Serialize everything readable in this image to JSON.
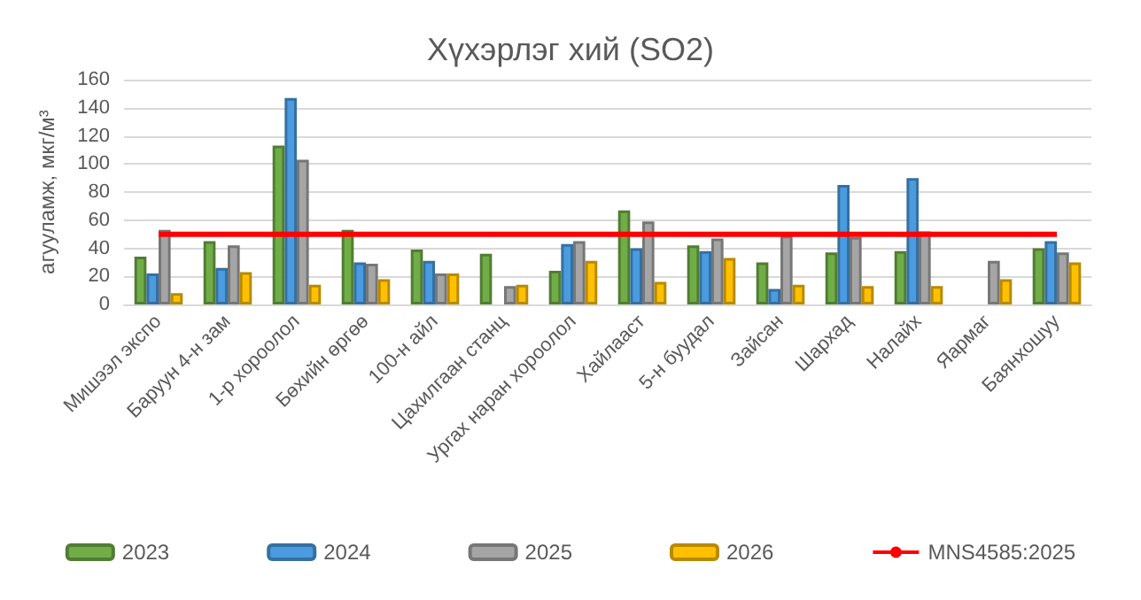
{
  "chart_data": {
    "type": "bar",
    "title": "Хүхэрлэг хий (SO2)",
    "ylabel": "агууламж, мкг/м³",
    "categories": [
      "Мишээл экспо",
      "Баруун 4-н зам",
      "1-р хороолол",
      "Бөхийн өргөө",
      "100-н айл",
      "Цахилгаан станц",
      "Ургах наран хороолол",
      "Хайлааст",
      "5-н буудал",
      "Зайсан",
      "Шархад",
      "Налайх",
      "Яармаг",
      "Баянхошуу"
    ],
    "series": [
      {
        "name": "2023",
        "color": "#70ad47",
        "values": [
          34,
          45,
          113,
          53,
          39,
          36,
          24,
          67,
          42,
          30,
          37,
          38,
          null,
          40
        ]
      },
      {
        "name": "2024",
        "color": "#4a9be0",
        "values": [
          22,
          26,
          147,
          30,
          31,
          null,
          43,
          40,
          38,
          11,
          85,
          90,
          null,
          45
        ]
      },
      {
        "name": "2025",
        "color": "#a5a5a5",
        "values": [
          53,
          42,
          103,
          29,
          22,
          13,
          45,
          59,
          47,
          49,
          48,
          52,
          31,
          37
        ]
      },
      {
        "name": "2026",
        "color": "#ffc000",
        "values": [
          8,
          23,
          14,
          18,
          22,
          14,
          31,
          16,
          33,
          14,
          13,
          13,
          18,
          30
        ]
      },
      {
        "name": "MNS4585:2025",
        "type": "line",
        "color": "#ff0000",
        "marker": "none",
        "values": [
          50,
          50,
          50,
          50,
          50,
          50,
          50,
          50,
          50,
          50,
          50,
          50,
          50,
          50
        ]
      }
    ],
    "ylim": [
      0,
      160
    ],
    "yticks": [
      0,
      20,
      40,
      60,
      80,
      100,
      120,
      140,
      160
    ],
    "grid": "y",
    "legend": "bottom"
  }
}
